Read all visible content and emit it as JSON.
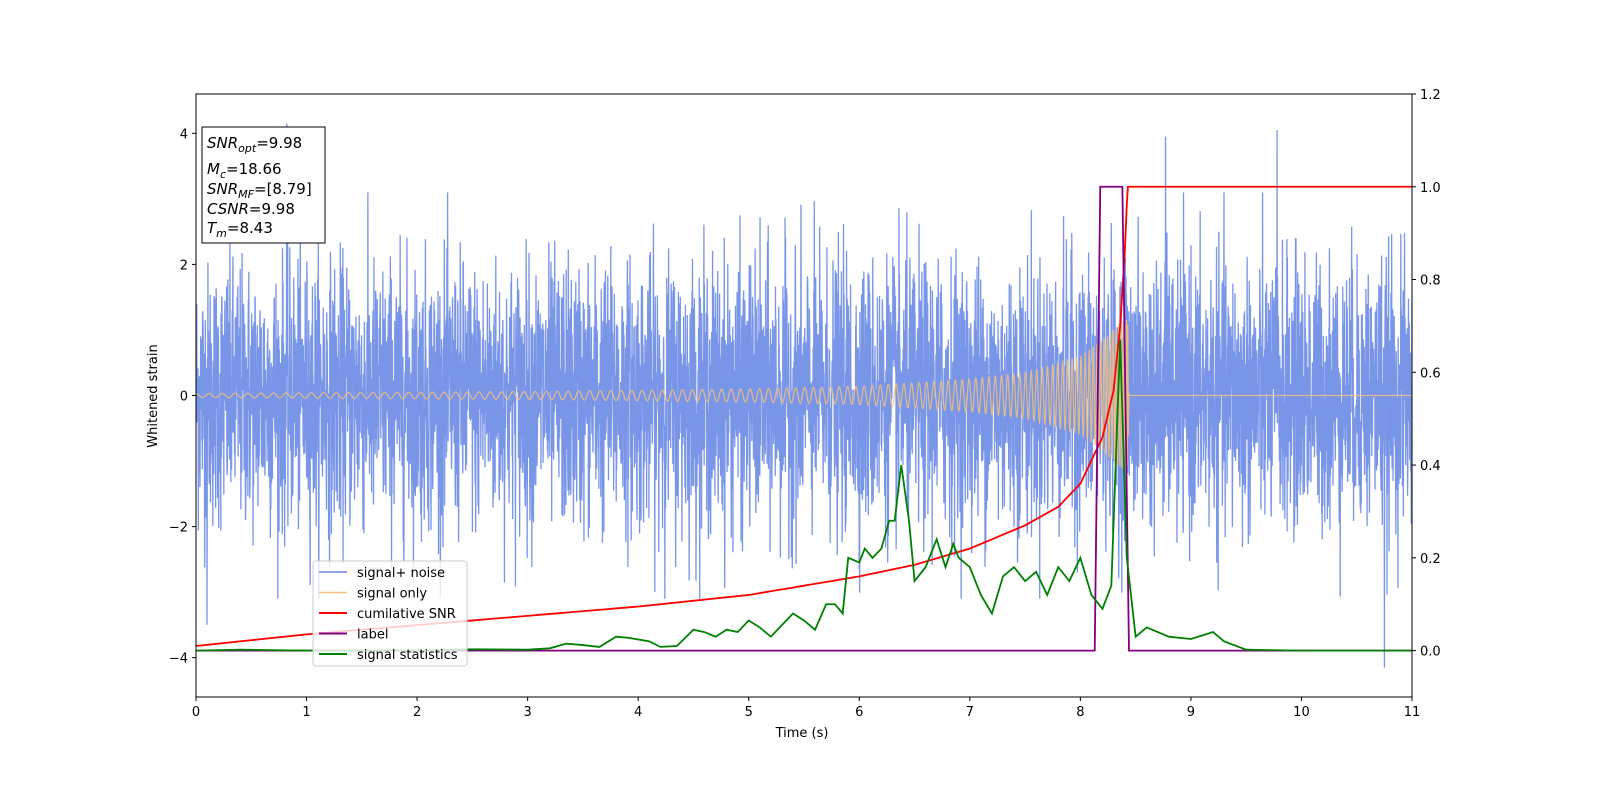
{
  "chart_data": {
    "type": "line",
    "xlabel": "Time (s)",
    "ylabel": "Whitened strain",
    "xlim": [
      0,
      11
    ],
    "ylim_left": [
      -4.6,
      4.6
    ],
    "ylim_right": [
      -0.1,
      1.2
    ],
    "x_ticks": [
      "0",
      "1",
      "2",
      "3",
      "4",
      "5",
      "6",
      "7",
      "8",
      "9",
      "10",
      "11"
    ],
    "y_left_ticks": [
      "−4",
      "−2",
      "0",
      "2",
      "4"
    ],
    "y_right_ticks": [
      "0.0",
      "0.2",
      "0.4",
      "0.6",
      "0.8",
      "1.0",
      "1.2"
    ],
    "grid": false,
    "legend_position": "lower-left",
    "series": [
      {
        "name": "signal+ noise",
        "axis": "left",
        "color": "#6a89e6",
        "kind": "noise",
        "std": 1.0,
        "peaks": [
          [
            0.82,
            4.15
          ],
          [
            9.78,
            4.05
          ],
          [
            8.77,
            3.95
          ],
          [
            10.75,
            -4.15
          ],
          [
            0.1,
            -3.5
          ]
        ]
      },
      {
        "name": "signal only",
        "axis": "left",
        "color": "#f5c27a",
        "kind": "chirp",
        "envelope_points": [
          [
            0,
            0.03
          ],
          [
            3,
            0.06
          ],
          [
            5,
            0.1
          ],
          [
            6,
            0.14
          ],
          [
            7,
            0.25
          ],
          [
            7.5,
            0.35
          ],
          [
            8,
            0.6
          ],
          [
            8.2,
            0.85
          ],
          [
            8.35,
            1.1
          ],
          [
            8.43,
            1.2
          ],
          [
            8.44,
            0
          ]
        ]
      },
      {
        "name": "cumilative SNR",
        "axis": "right",
        "color": "#ff0000",
        "points": [
          [
            0,
            0.01
          ],
          [
            1,
            0.035
          ],
          [
            2,
            0.055
          ],
          [
            3,
            0.075
          ],
          [
            4,
            0.095
          ],
          [
            5,
            0.12
          ],
          [
            6,
            0.16
          ],
          [
            6.5,
            0.185
          ],
          [
            7,
            0.22
          ],
          [
            7.5,
            0.27
          ],
          [
            7.8,
            0.31
          ],
          [
            8.0,
            0.36
          ],
          [
            8.2,
            0.46
          ],
          [
            8.3,
            0.56
          ],
          [
            8.36,
            0.7
          ],
          [
            8.4,
            0.85
          ],
          [
            8.42,
            0.96
          ],
          [
            8.43,
            1.0
          ],
          [
            11,
            1.0
          ]
        ]
      },
      {
        "name": "label",
        "axis": "right",
        "color": "#800080",
        "points": [
          [
            0,
            0
          ],
          [
            8.13,
            0
          ],
          [
            8.18,
            1.0
          ],
          [
            8.38,
            1.0
          ],
          [
            8.44,
            0
          ],
          [
            11,
            0
          ]
        ]
      },
      {
        "name": "signal statistics",
        "axis": "right",
        "color": "#008000",
        "points": [
          [
            0,
            0.0
          ],
          [
            0.4,
            0.002
          ],
          [
            1.0,
            0.0
          ],
          [
            2.0,
            0.0
          ],
          [
            2.5,
            0.003
          ],
          [
            3.0,
            0.002
          ],
          [
            3.2,
            0.005
          ],
          [
            3.35,
            0.015
          ],
          [
            3.5,
            0.012
          ],
          [
            3.65,
            0.008
          ],
          [
            3.8,
            0.03
          ],
          [
            3.9,
            0.028
          ],
          [
            4.1,
            0.02
          ],
          [
            4.2,
            0.008
          ],
          [
            4.35,
            0.01
          ],
          [
            4.5,
            0.045
          ],
          [
            4.6,
            0.04
          ],
          [
            4.7,
            0.03
          ],
          [
            4.8,
            0.045
          ],
          [
            4.9,
            0.04
          ],
          [
            5.0,
            0.065
          ],
          [
            5.1,
            0.05
          ],
          [
            5.2,
            0.03
          ],
          [
            5.3,
            0.055
          ],
          [
            5.4,
            0.08
          ],
          [
            5.5,
            0.065
          ],
          [
            5.6,
            0.045
          ],
          [
            5.7,
            0.1
          ],
          [
            5.78,
            0.1
          ],
          [
            5.85,
            0.08
          ],
          [
            5.9,
            0.2
          ],
          [
            6.0,
            0.19
          ],
          [
            6.05,
            0.22
          ],
          [
            6.12,
            0.2
          ],
          [
            6.2,
            0.22
          ],
          [
            6.27,
            0.28
          ],
          [
            6.32,
            0.28
          ],
          [
            6.38,
            0.4
          ],
          [
            6.45,
            0.28
          ],
          [
            6.5,
            0.15
          ],
          [
            6.6,
            0.18
          ],
          [
            6.7,
            0.24
          ],
          [
            6.78,
            0.18
          ],
          [
            6.85,
            0.23
          ],
          [
            6.9,
            0.2
          ],
          [
            7.0,
            0.18
          ],
          [
            7.1,
            0.12
          ],
          [
            7.2,
            0.08
          ],
          [
            7.3,
            0.16
          ],
          [
            7.4,
            0.18
          ],
          [
            7.5,
            0.15
          ],
          [
            7.6,
            0.17
          ],
          [
            7.7,
            0.12
          ],
          [
            7.8,
            0.18
          ],
          [
            7.9,
            0.15
          ],
          [
            8.0,
            0.2
          ],
          [
            8.1,
            0.12
          ],
          [
            8.2,
            0.09
          ],
          [
            8.28,
            0.14
          ],
          [
            8.36,
            0.67
          ],
          [
            8.42,
            0.2
          ],
          [
            8.5,
            0.03
          ],
          [
            8.6,
            0.05
          ],
          [
            8.8,
            0.03
          ],
          [
            9.0,
            0.025
          ],
          [
            9.2,
            0.04
          ],
          [
            9.3,
            0.02
          ],
          [
            9.5,
            0.002
          ],
          [
            10.0,
            0.0
          ],
          [
            11,
            0.0
          ]
        ]
      }
    ]
  },
  "info_box": {
    "lines": [
      {
        "var": "SNR",
        "sub": "opt",
        "value": "=9.98"
      },
      {
        "var": "M",
        "sub": "c",
        "value": "=18.66"
      },
      {
        "var": "SNR",
        "sub": "MF",
        "value": "=[8.79]"
      },
      {
        "var": "CSNR",
        "sub": "",
        "value": "=9.98"
      },
      {
        "var": "T",
        "sub": "m",
        "value": "=8.43"
      }
    ]
  },
  "legend": {
    "items": [
      "signal+ noise",
      "signal only",
      "cumilative SNR",
      "label",
      "signal statistics"
    ]
  }
}
